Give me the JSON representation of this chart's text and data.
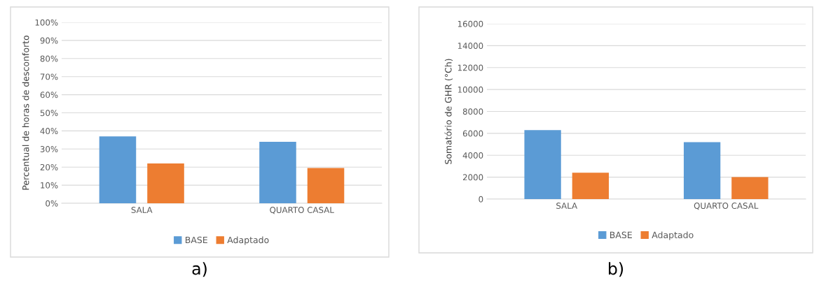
{
  "chart_data": [
    {
      "type": "bar",
      "categories": [
        "SALA",
        "QUARTO CASAL"
      ],
      "ylabel": "Percentual de horas de desconforto",
      "series": [
        {
          "name": "BASE",
          "color": "#5b9bd5",
          "values": [
            37,
            34
          ]
        },
        {
          "name": "Adaptado",
          "color": "#ed7d31",
          "values": [
            22,
            19.5
          ]
        }
      ],
      "ylim": [
        0,
        100
      ],
      "yticks": [
        {
          "value": 0,
          "label": "0%"
        },
        {
          "value": 10,
          "label": "10%"
        },
        {
          "value": 20,
          "label": "20%"
        },
        {
          "value": 30,
          "label": "30%"
        },
        {
          "value": 40,
          "label": "40%"
        },
        {
          "value": 50,
          "label": "50%"
        },
        {
          "value": 60,
          "label": "60%"
        },
        {
          "value": 70,
          "label": "70%"
        },
        {
          "value": 80,
          "label": "80%"
        },
        {
          "value": 90,
          "label": "90%"
        },
        {
          "value": 100,
          "label": "100%"
        }
      ],
      "grid": "y",
      "legend": "bottom",
      "annotations": [
        "a)"
      ]
    },
    {
      "type": "bar",
      "categories": [
        "SALA",
        "QUARTO CASAL"
      ],
      "ylabel": "Somatório de GHR (°Ch)",
      "series": [
        {
          "name": "BASE",
          "color": "#5b9bd5",
          "values": [
            6300,
            5200
          ]
        },
        {
          "name": "Adaptado",
          "color": "#ed7d31",
          "values": [
            2400,
            2000
          ]
        }
      ],
      "ylim": [
        0,
        16000
      ],
      "yticks": [
        0,
        2000,
        4000,
        6000,
        8000,
        10000,
        12000,
        14000,
        16000
      ],
      "grid": "y",
      "legend": "bottom",
      "annotations": [
        "b)"
      ]
    }
  ]
}
